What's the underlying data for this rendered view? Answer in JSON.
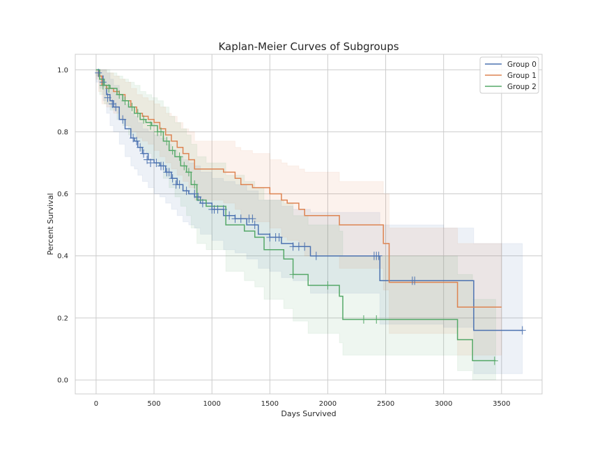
{
  "chart_data": {
    "type": "line",
    "step": "post",
    "title": "Kaplan-Meier Curves of Subgroups",
    "xlabel": "Days Survived",
    "ylabel": "Percent Survival",
    "xlim": [
      -180,
      3850
    ],
    "ylim": [
      -0.045,
      1.05
    ],
    "xticks": [
      0,
      500,
      1000,
      1500,
      2000,
      2500,
      3000,
      3500
    ],
    "yticks": [
      0.0,
      0.2,
      0.4,
      0.6,
      0.8,
      1.0
    ],
    "ytick_labels": [
      "0.0",
      "0.2",
      "0.4",
      "0.6",
      "0.8",
      "1.0"
    ],
    "grid": true,
    "legend_position": "top-right",
    "series": [
      {
        "name": "Group 0",
        "color": "#4c72b0",
        "x": [
          0,
          30,
          60,
          90,
          120,
          150,
          200,
          250,
          300,
          330,
          360,
          400,
          450,
          500,
          550,
          600,
          650,
          700,
          750,
          800,
          850,
          900,
          1000,
          1100,
          1200,
          1300,
          1400,
          1500,
          1600,
          1700,
          1850,
          2450,
          2500,
          3000,
          3260,
          3500,
          3680
        ],
        "y": [
          1.0,
          0.98,
          0.95,
          0.92,
          0.9,
          0.88,
          0.84,
          0.81,
          0.78,
          0.77,
          0.75,
          0.73,
          0.71,
          0.7,
          0.69,
          0.67,
          0.65,
          0.63,
          0.61,
          0.6,
          0.59,
          0.57,
          0.55,
          0.53,
          0.52,
          0.5,
          0.47,
          0.46,
          0.44,
          0.43,
          0.4,
          0.32,
          0.32,
          0.32,
          0.16,
          0.16,
          0.16
        ],
        "ci_upper": [
          1.0,
          1.0,
          1.0,
          0.99,
          0.97,
          0.95,
          0.92,
          0.89,
          0.86,
          0.85,
          0.83,
          0.81,
          0.8,
          0.79,
          0.78,
          0.76,
          0.74,
          0.72,
          0.71,
          0.7,
          0.69,
          0.67,
          0.65,
          0.64,
          0.63,
          0.61,
          0.58,
          0.58,
          0.56,
          0.55,
          0.54,
          0.5,
          0.5,
          0.49,
          0.44,
          0.44,
          0.44
        ],
        "ci_lower": [
          0.96,
          0.94,
          0.9,
          0.86,
          0.82,
          0.8,
          0.76,
          0.72,
          0.69,
          0.68,
          0.66,
          0.64,
          0.62,
          0.6,
          0.59,
          0.57,
          0.55,
          0.53,
          0.51,
          0.5,
          0.49,
          0.47,
          0.45,
          0.42,
          0.41,
          0.39,
          0.36,
          0.35,
          0.33,
          0.32,
          0.28,
          0.18,
          0.18,
          0.17,
          0.02,
          0.02,
          0.02
        ],
        "censored_x": [
          20,
          60,
          100,
          140,
          170,
          230,
          320,
          350,
          380,
          410,
          440,
          470,
          520,
          560,
          580,
          610,
          630,
          660,
          690,
          720,
          780,
          850,
          880,
          920,
          1000,
          1020,
          1050,
          1100,
          1150,
          1200,
          1250,
          1320,
          1350,
          1370,
          1500,
          1550,
          1580,
          1700,
          1750,
          1800,
          1900,
          2400,
          2420,
          2440,
          2730,
          2750,
          3680
        ],
        "censored_y": [
          0.99,
          0.96,
          0.91,
          0.89,
          0.88,
          0.84,
          0.78,
          0.77,
          0.75,
          0.73,
          0.71,
          0.7,
          0.7,
          0.69,
          0.69,
          0.67,
          0.67,
          0.65,
          0.63,
          0.63,
          0.61,
          0.6,
          0.59,
          0.57,
          0.55,
          0.55,
          0.55,
          0.55,
          0.53,
          0.52,
          0.52,
          0.52,
          0.52,
          0.5,
          0.46,
          0.46,
          0.46,
          0.43,
          0.43,
          0.43,
          0.4,
          0.4,
          0.4,
          0.4,
          0.32,
          0.32,
          0.16
        ]
      },
      {
        "name": "Group 1",
        "color": "#dd8452",
        "x": [
          0,
          20,
          50,
          90,
          150,
          200,
          250,
          300,
          350,
          400,
          450,
          500,
          550,
          600,
          650,
          700,
          750,
          800,
          850,
          1100,
          1200,
          1250,
          1350,
          1500,
          1600,
          1650,
          1750,
          1800,
          2100,
          2480,
          2530,
          3120,
          3500
        ],
        "y": [
          1.0,
          0.98,
          0.95,
          0.94,
          0.93,
          0.92,
          0.9,
          0.88,
          0.86,
          0.85,
          0.84,
          0.83,
          0.81,
          0.79,
          0.77,
          0.75,
          0.73,
          0.71,
          0.68,
          0.67,
          0.65,
          0.63,
          0.62,
          0.6,
          0.58,
          0.57,
          0.55,
          0.53,
          0.5,
          0.44,
          0.315,
          0.235,
          0.235
        ],
        "ci_upper": [
          1.0,
          1.0,
          1.0,
          0.99,
          0.98,
          0.97,
          0.96,
          0.94,
          0.92,
          0.91,
          0.9,
          0.89,
          0.88,
          0.86,
          0.85,
          0.83,
          0.81,
          0.8,
          0.77,
          0.77,
          0.75,
          0.74,
          0.73,
          0.71,
          0.7,
          0.69,
          0.68,
          0.67,
          0.64,
          0.6,
          0.49,
          0.44,
          0.44
        ],
        "ci_lower": [
          0.97,
          0.93,
          0.89,
          0.88,
          0.86,
          0.84,
          0.82,
          0.8,
          0.78,
          0.77,
          0.76,
          0.74,
          0.72,
          0.7,
          0.68,
          0.66,
          0.64,
          0.62,
          0.58,
          0.57,
          0.55,
          0.52,
          0.51,
          0.49,
          0.46,
          0.45,
          0.43,
          0.4,
          0.36,
          0.29,
          0.15,
          0.08,
          0.08
        ]
      },
      {
        "name": "Group 2",
        "color": "#55a868",
        "x": [
          0,
          30,
          70,
          120,
          180,
          230,
          280,
          330,
          380,
          430,
          480,
          530,
          580,
          630,
          680,
          730,
          780,
          820,
          870,
          950,
          1120,
          1280,
          1370,
          1450,
          1620,
          1700,
          1830,
          2100,
          2130,
          3120,
          3250,
          3450
        ],
        "y": [
          1.0,
          0.97,
          0.95,
          0.94,
          0.92,
          0.9,
          0.88,
          0.86,
          0.84,
          0.83,
          0.82,
          0.8,
          0.77,
          0.74,
          0.72,
          0.69,
          0.67,
          0.63,
          0.58,
          0.56,
          0.5,
          0.48,
          0.46,
          0.42,
          0.39,
          0.34,
          0.305,
          0.27,
          0.195,
          0.13,
          0.062,
          0.062
        ],
        "ci_upper": [
          1.0,
          1.0,
          1.0,
          0.99,
          0.98,
          0.97,
          0.96,
          0.95,
          0.93,
          0.92,
          0.91,
          0.9,
          0.88,
          0.85,
          0.83,
          0.81,
          0.79,
          0.76,
          0.72,
          0.7,
          0.66,
          0.64,
          0.62,
          0.58,
          0.57,
          0.53,
          0.5,
          0.48,
          0.4,
          0.34,
          0.26,
          0.26
        ],
        "ci_lower": [
          0.98,
          0.92,
          0.89,
          0.87,
          0.84,
          0.82,
          0.79,
          0.77,
          0.74,
          0.73,
          0.71,
          0.69,
          0.65,
          0.62,
          0.59,
          0.56,
          0.53,
          0.49,
          0.44,
          0.42,
          0.35,
          0.32,
          0.3,
          0.26,
          0.23,
          0.19,
          0.15,
          0.12,
          0.08,
          0.03,
          0.0,
          0.0
        ],
        "censored_x": [
          60,
          110,
          200,
          250,
          310,
          360,
          410,
          470,
          530,
          560,
          610,
          660,
          720,
          760,
          800,
          850,
          1700,
          2000,
          2310,
          2420,
          3440
        ],
        "censored_y": [
          0.95,
          0.94,
          0.92,
          0.9,
          0.88,
          0.86,
          0.84,
          0.82,
          0.8,
          0.8,
          0.77,
          0.74,
          0.72,
          0.69,
          0.67,
          0.63,
          0.34,
          0.305,
          0.195,
          0.195,
          0.062
        ]
      }
    ]
  }
}
